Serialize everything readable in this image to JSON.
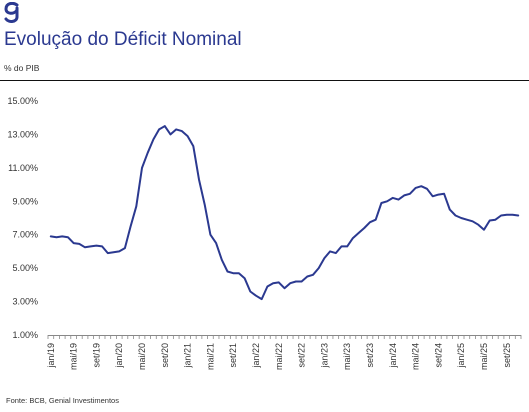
{
  "header": {
    "title": "Evolução do Déficit Nominal",
    "subtitle": "% do PIB"
  },
  "footer": {
    "source": "Fonte: BCB, Genial Investimentos"
  },
  "colors": {
    "brand": "#2b3990",
    "line": "#2b3990",
    "axis": "#888888"
  },
  "chart_data": {
    "type": "line",
    "title": "Evolução do Déficit Nominal",
    "ylabel": "% do PIB",
    "xlabel": "",
    "ylim": [
      1.0,
      15.0
    ],
    "ytick_values": [
      1,
      3,
      5,
      7,
      9,
      11,
      13,
      15
    ],
    "ytick_labels": [
      "1.00%",
      "3.00%",
      "5.00%",
      "7.00%",
      "9.00%",
      "11.00%",
      "13.00%",
      "15.00%"
    ],
    "grid": false,
    "legend": "none",
    "xtick_labels": [
      "jan/19",
      "mai/19",
      "set/19",
      "jan/20",
      "mai/20",
      "set/20",
      "jan/21",
      "mai/21",
      "set/21",
      "jan/22",
      "mai/22",
      "set/22",
      "jan/23",
      "mai/23",
      "set/23",
      "jan/24",
      "mai/24",
      "set/24",
      "jan/25",
      "mai/25",
      "set/25"
    ],
    "x": [
      "jan/19",
      "fev/19",
      "mar/19",
      "abr/19",
      "mai/19",
      "jun/19",
      "jul/19",
      "ago/19",
      "set/19",
      "out/19",
      "nov/19",
      "dez/19",
      "jan/20",
      "fev/20",
      "mar/20",
      "abr/20",
      "mai/20",
      "jun/20",
      "jul/20",
      "ago/20",
      "set/20",
      "out/20",
      "nov/20",
      "dez/20",
      "jan/21",
      "fev/21",
      "mar/21",
      "abr/21",
      "mai/21",
      "jun/21",
      "jul/21",
      "ago/21",
      "set/21",
      "out/21",
      "nov/21",
      "dez/21",
      "jan/22",
      "fev/22",
      "mar/22",
      "abr/22",
      "mai/22",
      "jun/22",
      "jul/22",
      "ago/22",
      "set/22",
      "out/22",
      "nov/22",
      "dez/22",
      "jan/23",
      "fev/23",
      "mar/23",
      "abr/23",
      "mai/23",
      "jun/23",
      "jul/23",
      "ago/23",
      "set/23",
      "out/23",
      "nov/23",
      "dez/23",
      "jan/24",
      "fev/24",
      "mar/24",
      "abr/24",
      "mai/24",
      "jun/24",
      "jul/24",
      "ago/24",
      "set/24",
      "out/24",
      "nov/24",
      "dez/24",
      "jan/25",
      "fev/25",
      "mar/25",
      "abr/25",
      "mai/25",
      "jun/25",
      "jul/25",
      "ago/25",
      "set/25",
      "out/25",
      "nov/25"
    ],
    "series": [
      {
        "values": [
          6.9,
          6.85,
          6.9,
          6.85,
          6.5,
          6.45,
          6.25,
          6.3,
          6.35,
          6.3,
          5.9,
          5.95,
          6.0,
          6.2,
          7.5,
          8.7,
          11.0,
          11.9,
          12.7,
          13.3,
          13.5,
          13.0,
          13.3,
          13.2,
          12.9,
          12.3,
          10.3,
          8.8,
          7.0,
          6.5,
          5.5,
          4.8,
          4.7,
          4.7,
          4.4,
          3.6,
          3.35,
          3.15,
          3.9,
          4.1,
          4.15,
          3.8,
          4.1,
          4.2,
          4.2,
          4.5,
          4.6,
          5.0,
          5.6,
          6.0,
          5.9,
          6.3,
          6.3,
          6.8,
          7.1,
          7.4,
          7.75,
          7.9,
          8.9,
          9.0,
          9.2,
          9.1,
          9.35,
          9.45,
          9.8,
          9.9,
          9.75,
          9.3,
          9.4,
          9.45,
          8.5,
          8.15,
          8.0,
          7.9,
          7.8,
          7.6,
          7.3,
          7.85,
          7.9,
          8.15,
          8.2,
          8.2,
          8.15
        ]
      }
    ]
  }
}
